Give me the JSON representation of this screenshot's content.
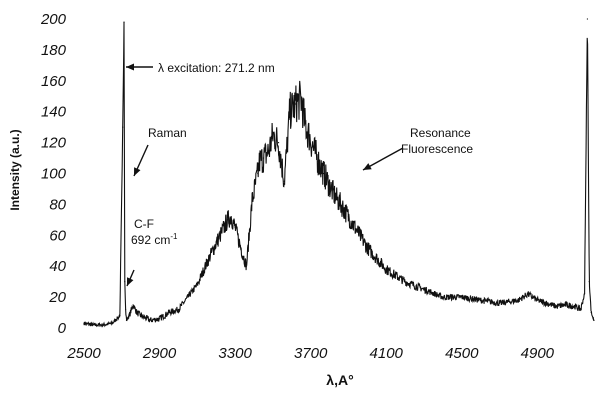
{
  "chart_data": {
    "type": "line",
    "title": "",
    "xlabel": "λ,A°",
    "ylabel": "Intensity (a.u.)",
    "xlim": [
      2500,
      5200
    ],
    "ylim": [
      0,
      200
    ],
    "x_ticks": [
      2500,
      2900,
      3300,
      3700,
      4100,
      4500,
      4900
    ],
    "y_ticks": [
      0,
      20,
      40,
      60,
      80,
      100,
      120,
      140,
      160,
      180,
      200
    ],
    "grid": false,
    "legend": "none",
    "series": [
      {
        "x": [
          2500,
          2550,
          2600,
          2650,
          2690,
          2705,
          2712,
          2716,
          2720,
          2725,
          2740,
          2760,
          2780,
          2800,
          2850,
          2900,
          2950,
          3000,
          3050,
          3100,
          3150,
          3200,
          3230,
          3260,
          3280,
          3300,
          3330,
          3360,
          3390,
          3420,
          3430,
          3450,
          3480,
          3500,
          3530,
          3560,
          3590,
          3620,
          3650,
          3670,
          3690,
          3710,
          3740,
          3770,
          3800,
          3830,
          3860,
          3900,
          3950,
          4000,
          4050,
          4100,
          4200,
          4300,
          4400,
          4500,
          4600,
          4700,
          4800,
          4850,
          4900,
          4950,
          5000,
          5050,
          5100,
          5130,
          5150,
          5165,
          5175,
          5185,
          5200
        ],
        "y": [
          3,
          2,
          2,
          3,
          8,
          130,
          198,
          30,
          12,
          5,
          8,
          15,
          10,
          8,
          5,
          6,
          10,
          12,
          20,
          28,
          42,
          55,
          62,
          70,
          72,
          65,
          52,
          40,
          82,
          100,
          108,
          110,
          115,
          125,
          120,
          95,
          140,
          145,
          148,
          132,
          125,
          118,
          108,
          100,
          92,
          85,
          80,
          72,
          62,
          52,
          45,
          38,
          30,
          25,
          20,
          20,
          18,
          16,
          18,
          22,
          18,
          16,
          14,
          15,
          14,
          12,
          22,
          200,
          30,
          10,
          5
        ]
      }
    ],
    "annotations": [
      {
        "text": "λ excitation: 271.2 nm",
        "x": 2716,
        "y": 198
      },
      {
        "text": "Raman",
        "x": 2716,
        "y": 125
      },
      {
        "text": "C-F",
        "x": 2712,
        "y": 35
      },
      {
        "text": "692 cm",
        "superscript": "-1"
      },
      {
        "text": "Resonance"
      },
      {
        "text": "Fluorescence",
        "x": 3860,
        "y": 118
      }
    ]
  }
}
